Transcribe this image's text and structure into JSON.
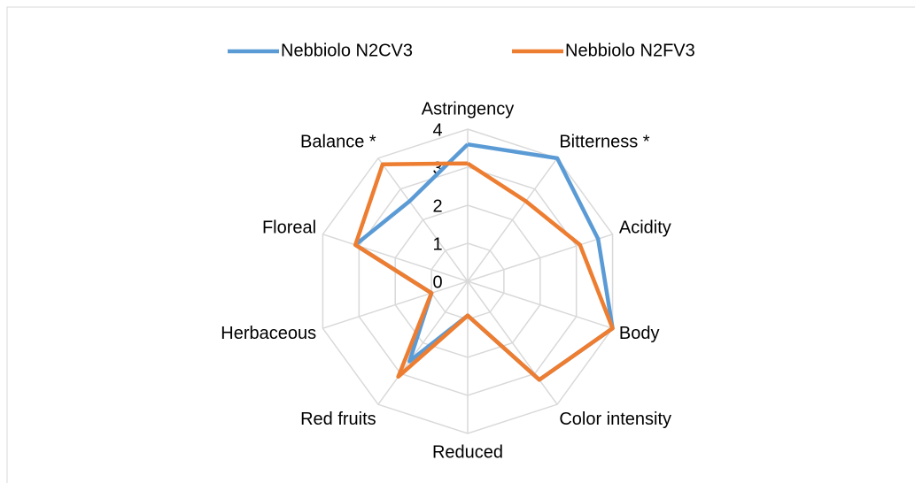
{
  "chart_data": {
    "type": "radar",
    "categories": [
      "Astringency",
      "Bitterness *",
      "Acidity",
      "Body",
      "Color intensity",
      "Reduced",
      "Red fruits",
      "Herbaceous",
      "Floreal",
      "Balance *"
    ],
    "series": [
      {
        "name": "Nebbiolo N2CV3",
        "color": "#5b9bd5",
        "values": [
          3.6,
          4.0,
          3.6,
          4.0,
          3.2,
          0.9,
          2.6,
          1.0,
          3.1,
          2.6
        ]
      },
      {
        "name": "Nebbiolo N2FV3",
        "color": "#ed7d31",
        "values": [
          3.1,
          2.6,
          3.1,
          4.0,
          3.2,
          0.9,
          3.1,
          1.0,
          3.1,
          3.8
        ]
      }
    ],
    "ylim": [
      0,
      4
    ],
    "yticks": [
      0,
      1,
      2,
      3,
      4
    ],
    "grid": true,
    "legend": "top"
  }
}
